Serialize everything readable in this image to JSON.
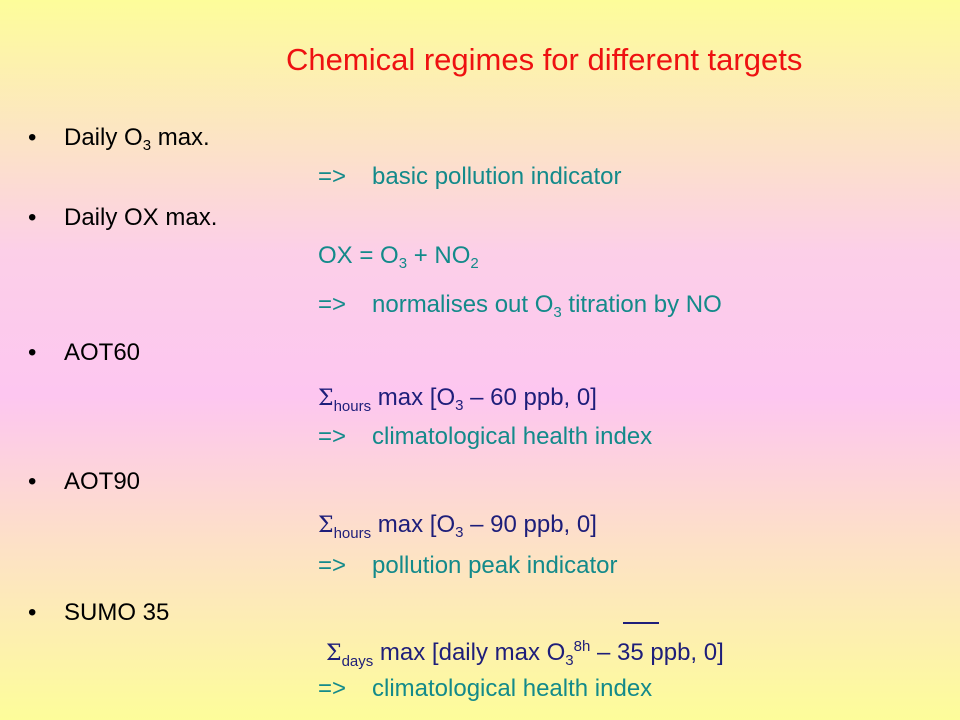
{
  "title": "Chemical regimes for different targets",
  "bullet_char": "•",
  "items": [
    {
      "label_pre": "Daily O",
      "label_sub": "3",
      "label_post": " max.",
      "result_arrow": "=>",
      "result": "basic pollution indicator"
    },
    {
      "label": "Daily OX max.",
      "formula": {
        "pre": "OX = O",
        "sub1": "3",
        "mid": " + NO",
        "sub2": "2"
      },
      "result_arrow": "=>",
      "result": {
        "pre": "normalises out O",
        "sub": "3",
        "post": " titration by NO"
      }
    },
    {
      "label": "AOT60",
      "formula": {
        "sigma": "Σ",
        "sub": "hours",
        "pre": " max [O",
        "o_sub": "3",
        "post": " – 60 ppb, 0]"
      },
      "result_arrow": "=>",
      "result": "climatological health index"
    },
    {
      "label": "AOT90",
      "formula": {
        "sigma": "Σ",
        "sub": "hours",
        "pre": " max [O",
        "o_sub": "3",
        "post": " – 90 ppb, 0]"
      },
      "result_arrow": "=>",
      "result": "pollution peak indicator"
    },
    {
      "label": "SUMO 35",
      "formula": {
        "sigma": "Σ",
        "sub": "days",
        "pre": " max [daily max O",
        "o_sub": "3",
        "o_sup": "8h",
        "post": " – 35 ppb, 0]"
      },
      "result_arrow": "=>",
      "result": "climatological health index"
    }
  ]
}
